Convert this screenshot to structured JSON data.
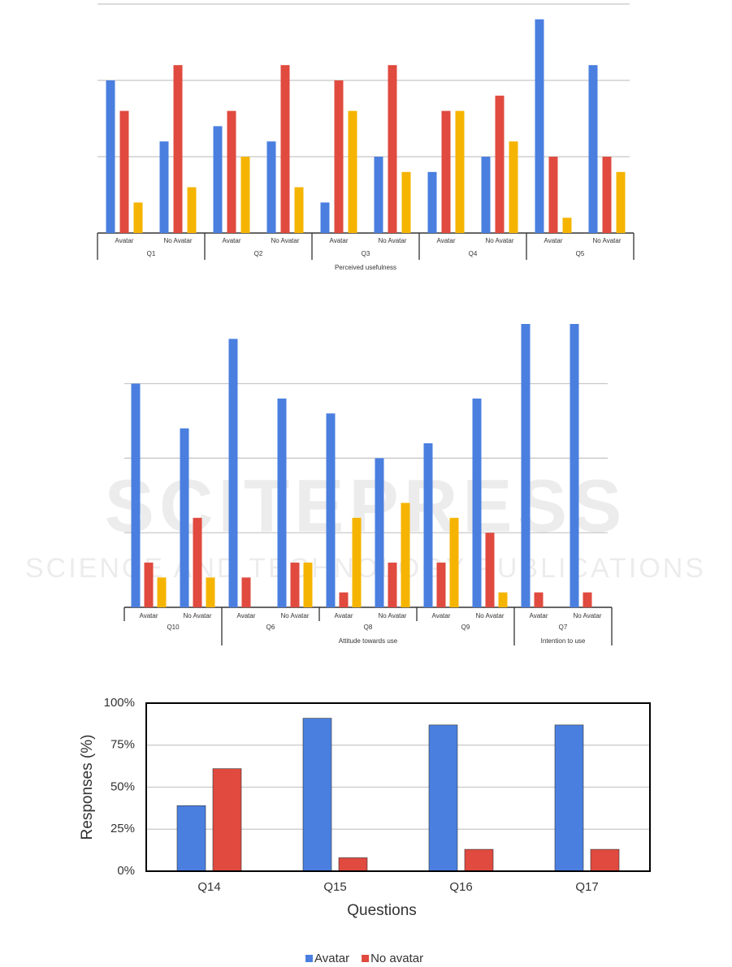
{
  "chart_data": [
    {
      "type": "grouped_bar",
      "categories": [
        "Avatar",
        "No Avatar",
        "Avatar",
        "No Avatar",
        "Avatar",
        "No Avatar",
        "Avatar",
        "No Avatar",
        "Avatar",
        "No Avatar"
      ],
      "groups": [
        "Q1",
        "Q2",
        "Q3",
        "Q4",
        "Q5"
      ],
      "supergroups": [
        {
          "label": "Perceived usefulness",
          "groups": [
            "Q1",
            "Q2",
            "Q3",
            "Q4",
            "Q5"
          ]
        }
      ],
      "series": [
        {
          "color": "#4a7fe0",
          "values": [
            10,
            6,
            7,
            6,
            2,
            5,
            4,
            5,
            14,
            11
          ]
        },
        {
          "color": "#e04a3f",
          "values": [
            8,
            11,
            8,
            11,
            10,
            11,
            8,
            9,
            5,
            5
          ]
        },
        {
          "color": "#f5b400",
          "values": [
            2,
            3,
            5,
            3,
            8,
            4,
            8,
            6,
            1,
            4
          ]
        }
      ],
      "ylim": [
        0,
        15
      ],
      "yticks": [
        0,
        5,
        10,
        15
      ],
      "grid": true
    },
    {
      "type": "grouped_bar",
      "categories": [
        "Avatar",
        "No Avatar",
        "Avatar",
        "No Avatar",
        "Avatar",
        "No Avatar",
        "Avatar",
        "No Avatar",
        "Avatar",
        "No Avatar"
      ],
      "groups": [
        "Q10",
        "Q6",
        "Q8",
        "Q9",
        "Q7"
      ],
      "supergroups": [
        {
          "label": "Attitude towards use",
          "groups": [
            "Q6",
            "Q8",
            "Q9"
          ]
        },
        {
          "label": "Intention to use",
          "groups": [
            "Q7"
          ]
        }
      ],
      "series": [
        {
          "color": "#4a7fe0",
          "values": [
            15,
            12,
            18,
            14,
            13,
            10,
            11,
            14,
            19,
            19
          ]
        },
        {
          "color": "#e04a3f",
          "values": [
            3,
            6,
            2,
            3,
            1,
            3,
            3,
            5,
            1,
            1
          ]
        },
        {
          "color": "#f5b400",
          "values": [
            2,
            2,
            0,
            3,
            6,
            7,
            6,
            1,
            0,
            0
          ]
        }
      ],
      "ylim": [
        0,
        19
      ],
      "yticks": [
        0,
        5,
        10,
        15
      ],
      "grid": true
    },
    {
      "type": "bar",
      "categories": [
        "Q14",
        "Q15",
        "Q16",
        "Q17"
      ],
      "series": [
        {
          "name": "Avatar",
          "color": "#4a7fe0",
          "values": [
            39,
            91,
            87,
            87
          ]
        },
        {
          "name": "No avatar",
          "color": "#e04a3f",
          "values": [
            61,
            8,
            13,
            13
          ]
        }
      ],
      "ylim": [
        0,
        100
      ],
      "yticks": [
        {
          "value": 0,
          "label": "0%"
        },
        {
          "value": 25,
          "label": "25%"
        },
        {
          "value": 50,
          "label": "50%"
        },
        {
          "value": 75,
          "label": "75%"
        },
        {
          "value": 100,
          "label": "100%"
        }
      ],
      "x_label": "Questions",
      "y_label": "Responses (%)",
      "grid": true,
      "legend": "bottom"
    }
  ],
  "watermark": {
    "title": "SCITEPRESS",
    "subtitle": "SCIENCE AND TECHNOLOGY PUBLICATIONS"
  }
}
